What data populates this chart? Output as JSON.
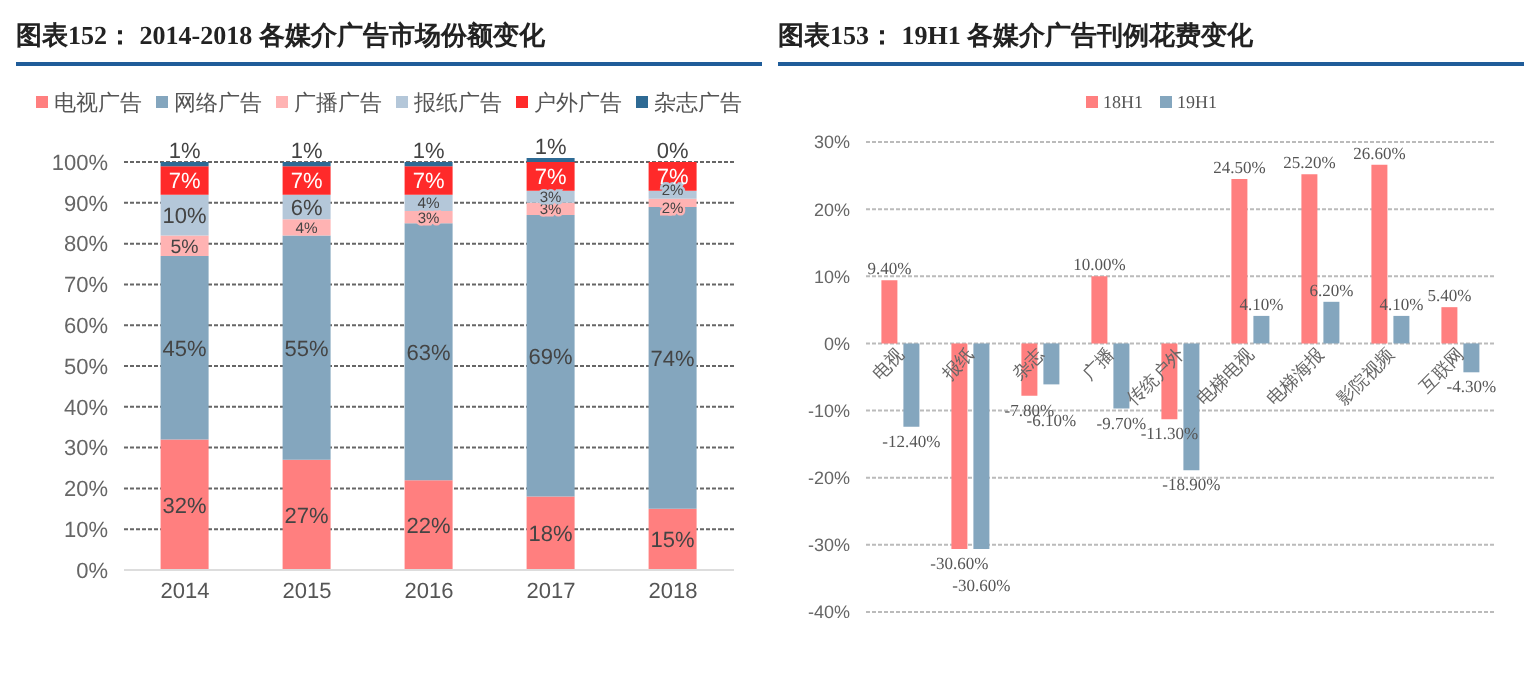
{
  "chart_data": [
    {
      "type": "bar",
      "title": "图表152： 2014-2018 各媒介广告市场份额变化",
      "stacked": true,
      "categories": [
        "2014",
        "2015",
        "2016",
        "2017",
        "2018"
      ],
      "ylim": [
        0,
        101
      ],
      "yticks": [
        {
          "value": 0,
          "label": "0%"
        },
        {
          "value": 10,
          "label": "10%"
        },
        {
          "value": 20,
          "label": "20%"
        },
        {
          "value": 30,
          "label": "30%"
        },
        {
          "value": 40,
          "label": "40%"
        },
        {
          "value": 50,
          "label": "50%"
        },
        {
          "value": 60,
          "label": "60%"
        },
        {
          "value": 70,
          "label": "70%"
        },
        {
          "value": 80,
          "label": "80%"
        },
        {
          "value": 90,
          "label": "90%"
        },
        {
          "value": 100,
          "label": "100%"
        }
      ],
      "grid": "y",
      "legend": "top",
      "series": [
        {
          "name": "电视广告",
          "color": "#ff7f7f",
          "values": [
            32,
            27,
            22,
            18,
            15
          ],
          "value_labels": [
            "32%",
            "27%",
            "22%",
            "18%",
            "15%"
          ]
        },
        {
          "name": "网络广告",
          "color": "#84a6be",
          "values": [
            45,
            55,
            63,
            69,
            74
          ],
          "value_labels": [
            "45%",
            "55%",
            "63%",
            "69%",
            "74%"
          ]
        },
        {
          "name": "广播广告",
          "color": "#ffb3b3",
          "values": [
            5,
            4,
            3,
            3,
            2
          ],
          "value_labels": [
            "5%",
            "4%",
            "3%",
            "3%",
            "2%"
          ]
        },
        {
          "name": "报纸广告",
          "color": "#b4c7d9",
          "values": [
            10,
            6,
            4,
            3,
            2
          ],
          "value_labels": [
            "10%",
            "6%",
            "4%",
            "3%",
            "2%"
          ]
        },
        {
          "name": "户外广告",
          "color": "#ff2a2a",
          "values": [
            7,
            7,
            7,
            7,
            7
          ],
          "value_labels": [
            "7%",
            "7%",
            "7%",
            "7%",
            "7%"
          ]
        },
        {
          "name": "杂志广告",
          "color": "#2e6a94",
          "values": [
            1,
            1,
            1,
            1,
            0
          ],
          "value_labels": [
            "1%",
            "1%",
            "1%",
            "1%",
            "0%"
          ]
        }
      ]
    },
    {
      "type": "bar",
      "title": "图表153： 19H1 各媒介广告刊例花费变化",
      "categories": [
        "电视",
        "报纸",
        "杂志",
        "广播",
        "传统户外",
        "电梯电视",
        "电梯海报",
        "影院视频",
        "互联网"
      ],
      "ylim": [
        -40,
        30
      ],
      "yticks": [
        {
          "value": -40,
          "label": "-40%"
        },
        {
          "value": -30,
          "label": "-30%"
        },
        {
          "value": -20,
          "label": "-20%"
        },
        {
          "value": -10,
          "label": "-10%"
        },
        {
          "value": 0,
          "label": "0%"
        },
        {
          "value": 10,
          "label": "10%"
        },
        {
          "value": 20,
          "label": "20%"
        },
        {
          "value": 30,
          "label": "30%"
        }
      ],
      "grid": "y",
      "legend": "top",
      "series": [
        {
          "name": "18H1",
          "color": "#ff7f7f",
          "values": [
            9.4,
            -30.6,
            -7.8,
            10.0,
            -11.3,
            24.5,
            25.2,
            26.6,
            5.4
          ],
          "value_labels": [
            "9.40%",
            "-30.60%",
            "-7.80%",
            "10.00%",
            "-11.30%",
            "24.50%",
            "25.20%",
            "26.60%",
            "5.40%"
          ]
        },
        {
          "name": "19H1",
          "color": "#84a6be",
          "values": [
            -12.4,
            -30.6,
            -6.1,
            -9.7,
            -18.9,
            4.1,
            6.2,
            4.1,
            -4.3
          ],
          "value_labels": [
            "-12.40%",
            "-30.60%",
            "-6.10%",
            "-9.70%",
            "-18.90%",
            "4.10%",
            "6.20%",
            "4.10%",
            "-4.30%"
          ]
        }
      ]
    }
  ]
}
